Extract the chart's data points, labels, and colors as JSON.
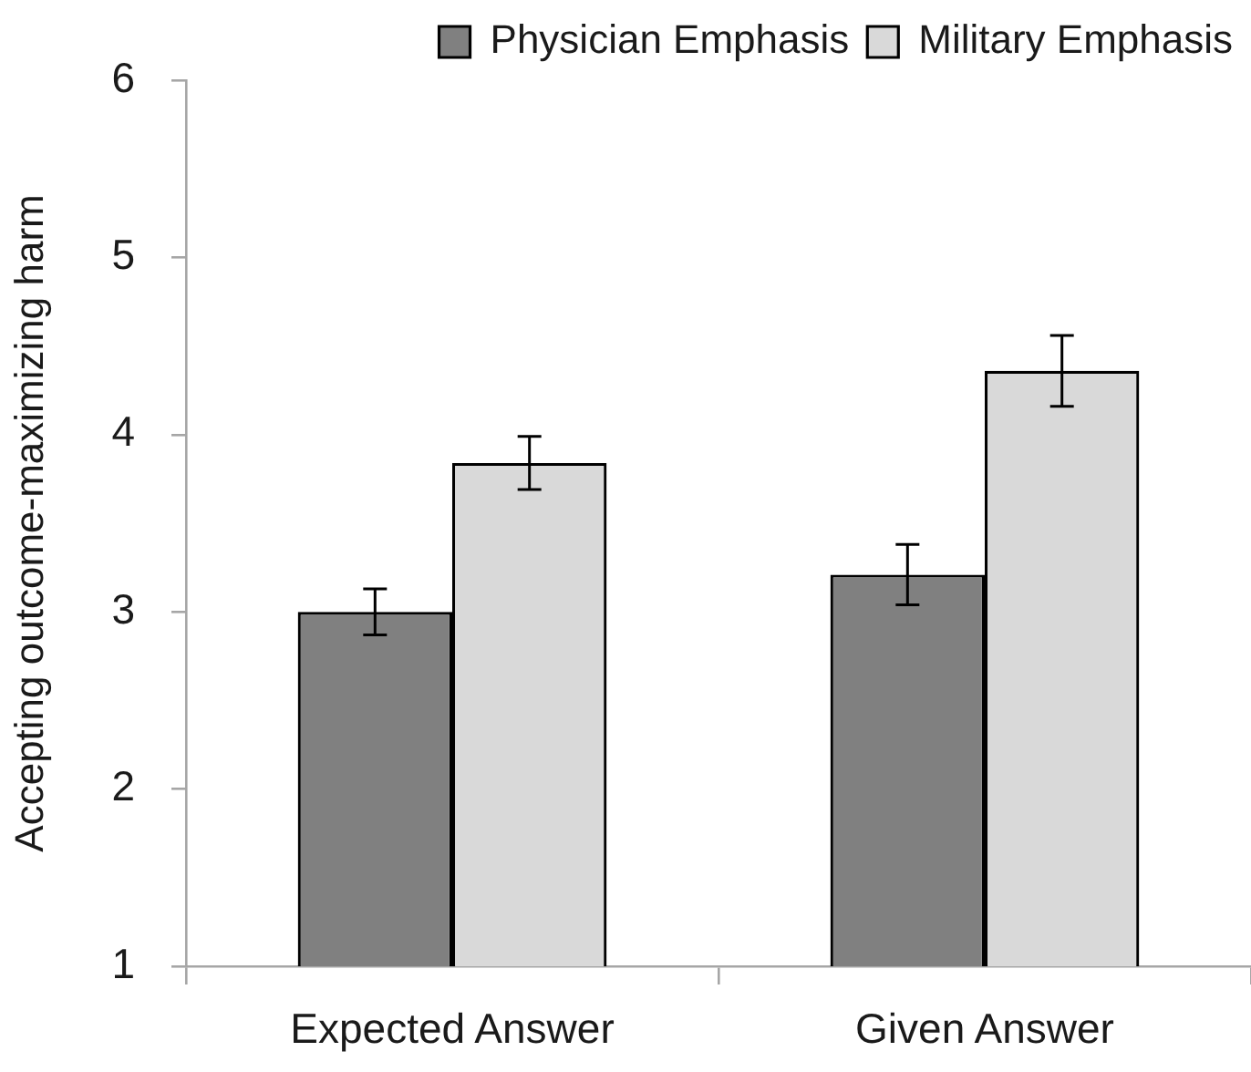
{
  "chart_data": {
    "type": "bar",
    "categories": [
      "Expected Answer",
      "Given Answer"
    ],
    "series": [
      {
        "name": "Physician Emphasis",
        "color": "#808080",
        "values": [
          3.0,
          3.21
        ],
        "errors": [
          0.13,
          0.17
        ]
      },
      {
        "name": "Military Emphasis",
        "color": "#d9d9d9",
        "values": [
          3.84,
          4.36
        ],
        "errors": [
          0.15,
          0.2
        ]
      }
    ],
    "ylabel": "Accepting outcome-maximizing harm",
    "ylim": [
      1,
      6
    ],
    "yticks": [
      1,
      2,
      3,
      4,
      5,
      6
    ],
    "grid": false,
    "legend": "top right"
  }
}
